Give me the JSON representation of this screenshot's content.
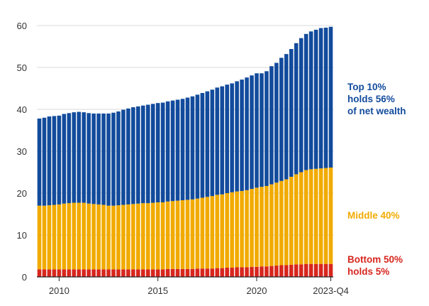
{
  "chart_data": {
    "type": "bar",
    "stacked": true,
    "ylim": [
      0,
      60
    ],
    "yticks": [
      "0",
      "10",
      "20",
      "30",
      "40",
      "50",
      "60"
    ],
    "ytick_values": [
      0,
      10,
      20,
      30,
      40,
      50,
      60
    ],
    "xticks": [
      {
        "label": "2010",
        "index": 4
      },
      {
        "label": "2015",
        "index": 24
      },
      {
        "label": "2020",
        "index": 44
      },
      {
        "label": "2023-Q4",
        "index": 59
      }
    ],
    "grid": true,
    "series": [
      {
        "name": "Bottom 50%",
        "color": "#d7261e",
        "values": [
          1.8,
          1.8,
          1.8,
          1.8,
          1.8,
          1.8,
          1.8,
          1.8,
          1.8,
          1.8,
          1.8,
          1.8,
          1.8,
          1.8,
          1.8,
          1.8,
          1.8,
          1.8,
          1.8,
          1.8,
          1.8,
          1.8,
          1.8,
          1.8,
          1.8,
          1.8,
          1.9,
          1.9,
          1.9,
          1.9,
          1.9,
          1.9,
          2.0,
          2.0,
          2.0,
          2.0,
          2.1,
          2.1,
          2.2,
          2.2,
          2.3,
          2.3,
          2.3,
          2.4,
          2.4,
          2.5,
          2.5,
          2.6,
          2.7,
          2.8,
          2.8,
          2.9,
          3.0,
          3.0,
          3.1,
          3.1,
          3.1,
          3.1,
          3.1,
          3.1
        ]
      },
      {
        "name": "Middle 40%",
        "color": "#f1ab00",
        "values": [
          15.2,
          15.2,
          15.3,
          15.4,
          15.5,
          15.7,
          15.8,
          15.9,
          15.9,
          15.9,
          15.7,
          15.6,
          15.5,
          15.4,
          15.2,
          15.2,
          15.3,
          15.4,
          15.5,
          15.6,
          15.7,
          15.8,
          15.8,
          15.9,
          16.0,
          16.0,
          16.1,
          16.2,
          16.3,
          16.4,
          16.5,
          16.6,
          16.7,
          16.9,
          17.1,
          17.3,
          17.5,
          17.6,
          17.8,
          18.0,
          18.1,
          18.2,
          18.4,
          18.6,
          18.9,
          19.0,
          19.2,
          19.5,
          19.8,
          20.1,
          20.5,
          21.0,
          21.5,
          22.0,
          22.4,
          22.6,
          22.7,
          22.8,
          22.9,
          23.0
        ]
      },
      {
        "name": "Top 10%",
        "color": "#124b9c",
        "values": [
          20.8,
          21.0,
          21.2,
          21.2,
          21.2,
          21.4,
          21.5,
          21.6,
          21.7,
          21.6,
          21.6,
          21.6,
          21.7,
          21.8,
          22.0,
          22.2,
          22.4,
          22.7,
          22.9,
          23.1,
          23.2,
          23.3,
          23.5,
          23.6,
          23.7,
          23.8,
          23.9,
          24.0,
          24.1,
          24.2,
          24.4,
          24.6,
          24.8,
          25.0,
          25.2,
          25.4,
          25.6,
          25.8,
          25.9,
          26.0,
          26.3,
          26.6,
          26.9,
          27.1,
          27.3,
          27.1,
          27.4,
          28.2,
          28.6,
          29.4,
          29.9,
          30.5,
          31.3,
          32.0,
          32.5,
          32.9,
          33.2,
          33.5,
          33.5,
          33.6
        ]
      }
    ]
  },
  "labels": {
    "top": {
      "line1": "Top 10%",
      "line2": "holds 56%",
      "line3": "of net wealth",
      "color": "#124b9c"
    },
    "middle": {
      "line1": "Middle 40%",
      "color": "#f1ab00"
    },
    "bottom": {
      "line1": "Bottom 50%",
      "line2": "holds 5%",
      "color": "#d7261e"
    }
  }
}
